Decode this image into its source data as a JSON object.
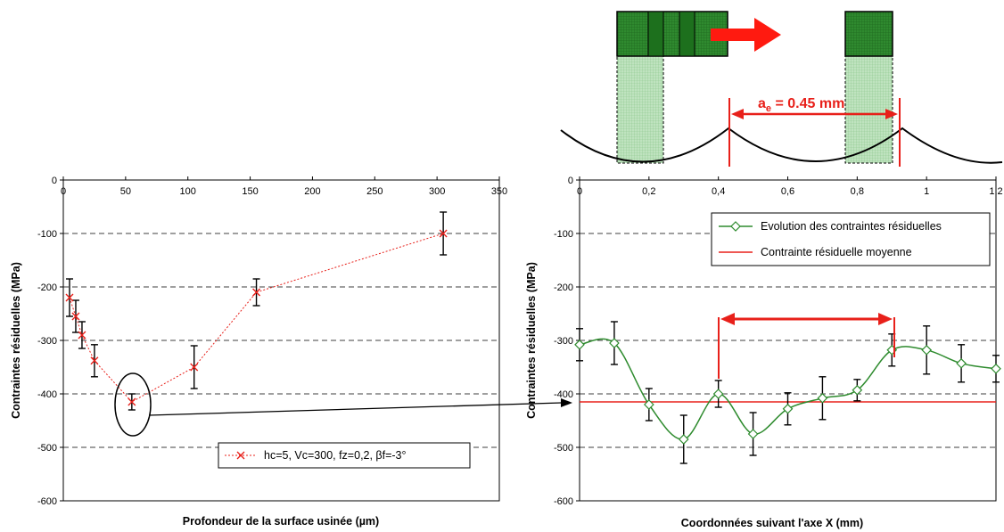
{
  "chart_data": [
    {
      "type": "line",
      "xlabel": "Profondeur de la surface usinée (µm)",
      "ylabel": "Contraintes résiduelles (MPa)",
      "xlim": [
        0,
        350
      ],
      "ylim": [
        -600,
        0
      ],
      "x_ticks": [
        "0",
        "50",
        "100",
        "150",
        "200",
        "250",
        "300",
        "350"
      ],
      "y_ticks": [
        "0",
        "-100",
        "-200",
        "-300",
        "-400",
        "-500",
        "-600"
      ],
      "grid": "horizontal dashed",
      "legend_position": "bottom-right",
      "series": [
        {
          "name": "hc=5, Vc=300, fz=0,2, βf=-3°",
          "color": "#e8201a",
          "marker": "x",
          "line": "dotted",
          "x": [
            5,
            10,
            15,
            25,
            55,
            105,
            155,
            305
          ],
          "y": [
            -220,
            -255,
            -290,
            -338,
            -415,
            -350,
            -210,
            -100
          ],
          "err": [
            35,
            30,
            25,
            30,
            15,
            40,
            25,
            40
          ]
        }
      ]
    },
    {
      "type": "line",
      "xlabel": "Coordonnées suivant l'axe X (mm)",
      "ylabel": "Contraintes résiduelles (MPa)",
      "xlim": [
        0,
        1.2
      ],
      "ylim": [
        -600,
        0
      ],
      "x_ticks": [
        "0",
        "0,2",
        "0,4",
        "0,6",
        "0,8",
        "1",
        "1,2"
      ],
      "y_ticks": [
        "0",
        "-100",
        "-200",
        "-300",
        "-400",
        "-500",
        "-600"
      ],
      "grid": "horizontal dashed",
      "legend_position": "top-right",
      "series": [
        {
          "name": "Evolution des contraintes résiduelles",
          "color": "#2e8b2e",
          "marker": "diamond",
          "x": [
            0,
            0.1,
            0.2,
            0.3,
            0.4,
            0.5,
            0.6,
            0.7,
            0.8,
            0.9,
            1.0,
            1.1,
            1.2
          ],
          "y": [
            -308,
            -305,
            -420,
            -485,
            -400,
            -475,
            -428,
            -408,
            -393,
            -318,
            -318,
            -343,
            -353
          ],
          "err": [
            30,
            40,
            30,
            45,
            25,
            40,
            30,
            40,
            20,
            30,
            45,
            35,
            25
          ]
        },
        {
          "name": "Contrainte résiduelle moyenne",
          "color": "#e8201a",
          "x": [
            0,
            1.2
          ],
          "y": [
            -415,
            -415
          ]
        }
      ]
    }
  ],
  "annotation": {
    "ae_label": "a",
    "ae_sub": "e",
    "ae_value": " = 0.45 mm",
    "ae_color": "#e8201a"
  }
}
